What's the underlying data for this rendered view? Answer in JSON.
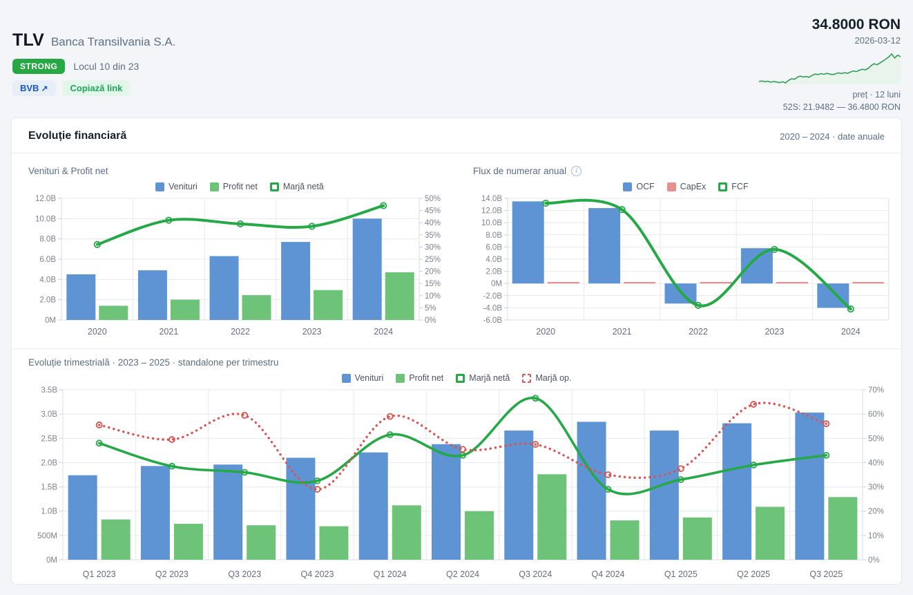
{
  "header": {
    "ticker": "TLV",
    "company": "Banca Transilvania S.A.",
    "rating_badge": "STRONG",
    "rank_text": "Locul 10 din 23",
    "exchange_label": "BVB",
    "copy_link_label": "Copiază link",
    "price": "34.8000 RON",
    "price_date": "2026-03-12",
    "sparkline_caption": "preț · 12 luni",
    "range_52w": "52S: 21.9482 — 36.4800 RON",
    "accent_green": "#28a745",
    "link_blue": "#1456c8",
    "copy_green": "#1ea45c"
  },
  "card": {
    "title": "Evoluție financiară",
    "range_note": "2020 – 2024 · date anuale"
  },
  "sparkline": {
    "color": "#2f9e57",
    "fill": "#e8f4ec",
    "points": [
      25.2,
      25.4,
      25.1,
      25.3,
      24.9,
      25.2,
      25.0,
      24.7,
      25.1,
      24.6,
      25.6,
      26.3,
      26.1,
      26.9,
      27.4,
      27.0,
      27.2,
      26.9,
      27.7,
      28.2,
      28.0,
      28.4,
      28.1,
      28.5,
      28.2,
      28.0,
      28.3,
      28.7,
      28.4,
      28.8,
      28.5,
      29.0,
      29.5,
      29.2,
      29.7,
      30.2,
      29.9,
      30.5,
      31.6,
      32.4,
      32.0,
      32.7,
      33.5,
      34.3,
      35.2,
      36.4,
      34.7,
      35.9,
      35.3
    ]
  },
  "chart_data": [
    {
      "id": "venituri_profit",
      "type": "bar+line",
      "title": "Venituri & Profit net",
      "categories": [
        "2020",
        "2021",
        "2022",
        "2023",
        "2024"
      ],
      "left_axis": {
        "min": 0,
        "max": 12,
        "step": 2,
        "unit": "B"
      },
      "right_axis": {
        "min": 0,
        "max": 50,
        "step": 5,
        "unit": "%"
      },
      "grid": true,
      "legend_position": "top",
      "bar_series": [
        {
          "name": "Venituri",
          "color": "#5e94d4",
          "values": [
            4.5,
            4.9,
            6.3,
            7.7,
            10.0
          ]
        },
        {
          "name": "Profit net",
          "color": "#6dc377",
          "values": [
            1.4,
            2.0,
            2.45,
            2.95,
            4.7
          ]
        }
      ],
      "line_series": [
        {
          "name": "Marjă netă",
          "color": "#25a846",
          "axis": "right",
          "dashed": false,
          "values": [
            31,
            41,
            39.5,
            38.5,
            47
          ]
        }
      ]
    },
    {
      "id": "flux_numerar",
      "type": "bar+line",
      "title": "Flux de numerar anual",
      "categories": [
        "2020",
        "2021",
        "2022",
        "2023",
        "2024"
      ],
      "left_axis": {
        "min": -6,
        "max": 14,
        "step": 2,
        "unit": "B"
      },
      "grid": true,
      "legend_position": "top",
      "bar_series": [
        {
          "name": "OCF",
          "color": "#5e94d4",
          "values": [
            13.5,
            12.4,
            -3.3,
            5.8,
            -4.0
          ]
        },
        {
          "name": "CapEx",
          "color": "#e89090",
          "values": [
            0.25,
            0.25,
            0.25,
            0.25,
            0.25
          ]
        }
      ],
      "line_series": [
        {
          "name": "FCF",
          "color": "#25a846",
          "axis": "left",
          "dashed": false,
          "values": [
            13.2,
            12.15,
            -3.6,
            5.6,
            -4.2
          ]
        }
      ]
    },
    {
      "id": "trimestrial",
      "type": "bar+line",
      "title": "Evoluție trimestrială · 2023 – 2025 · standalone per trimestru",
      "categories": [
        "Q1 2023",
        "Q2 2023",
        "Q3 2023",
        "Q4 2023",
        "Q1 2024",
        "Q2 2024",
        "Q3 2024",
        "Q4 2024",
        "Q1 2025",
        "Q2 2025",
        "Q3 2025"
      ],
      "left_axis": {
        "min": 0,
        "max": 3.5,
        "step": 0.5,
        "unit": "B"
      },
      "right_axis": {
        "min": 0,
        "max": 70,
        "step": 10,
        "unit": "%"
      },
      "grid": true,
      "legend_position": "top",
      "bar_series": [
        {
          "name": "Venituri",
          "color": "#5e94d4",
          "values": [
            1.74,
            1.93,
            1.96,
            2.1,
            2.21,
            2.38,
            2.66,
            2.84,
            2.66,
            2.81,
            3.03
          ]
        },
        {
          "name": "Profit net",
          "color": "#6dc377",
          "values": [
            0.83,
            0.74,
            0.71,
            0.69,
            1.12,
            1.0,
            1.76,
            0.81,
            0.87,
            1.09,
            1.29
          ]
        }
      ],
      "line_series": [
        {
          "name": "Marjă netă",
          "color": "#25a846",
          "axis": "right",
          "dashed": false,
          "values": [
            48,
            38.5,
            36,
            32.5,
            51.5,
            43,
            66.5,
            29,
            33,
            39,
            43
          ]
        },
        {
          "name": "Marjă op.",
          "color": "#d9534f",
          "axis": "right",
          "dashed": true,
          "values": [
            55.5,
            49.5,
            59.5,
            29,
            59,
            45.5,
            47.5,
            35,
            37.5,
            64,
            56
          ]
        }
      ]
    }
  ]
}
